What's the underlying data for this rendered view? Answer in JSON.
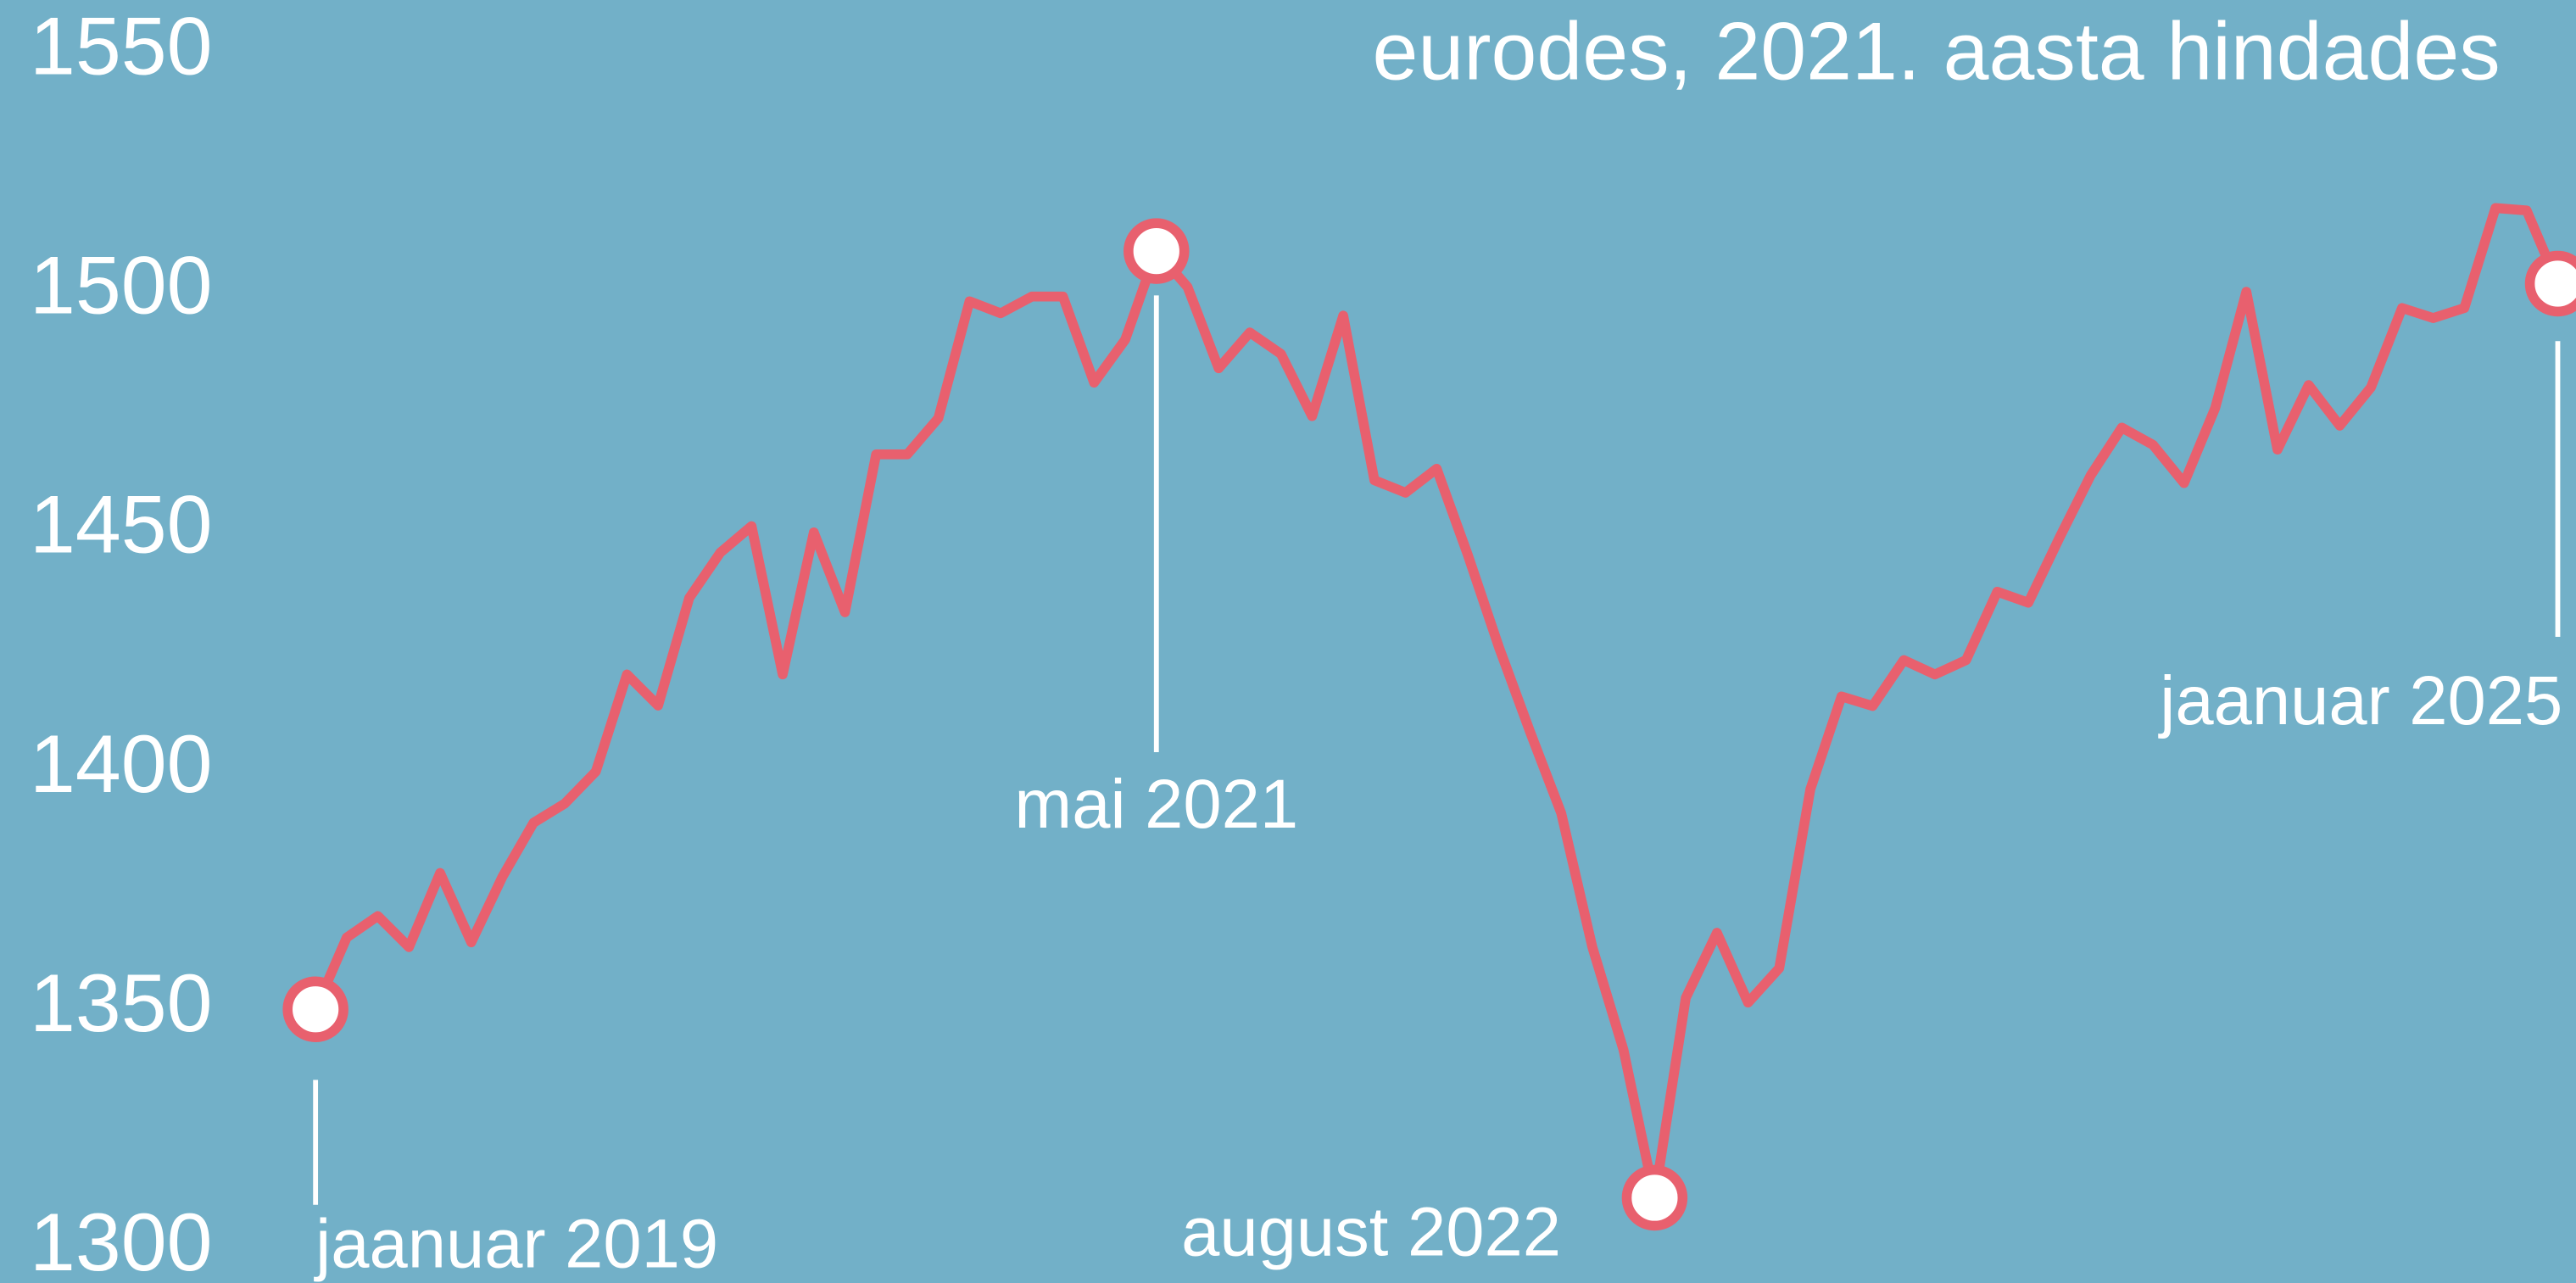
{
  "chart_data": {
    "type": "line",
    "title": "eurodes, 2021. aasta hindades",
    "categories": [
      "jaanuar 2019",
      null,
      null,
      null,
      null,
      null,
      null,
      null,
      null,
      null,
      null,
      null,
      null,
      null,
      null,
      null,
      null,
      null,
      null,
      null,
      null,
      null,
      null,
      null,
      null,
      null,
      null,
      "mai 2021",
      null,
      null,
      null,
      null,
      null,
      null,
      null,
      null,
      null,
      null,
      null,
      null,
      null,
      null,
      null,
      "august 2022",
      null,
      null,
      null,
      null,
      null,
      null,
      null,
      null,
      null,
      null,
      null,
      null,
      null,
      null,
      null,
      null,
      null,
      null,
      null,
      null,
      null,
      null,
      null,
      null,
      null,
      null,
      null,
      null,
      "jaanuar 2025"
    ],
    "series": [
      {
        "name": null,
        "color": "#e8606e",
        "values": [
          1350,
          1365,
          1369.5,
          1363,
          1378.5,
          1364,
          1377.7,
          1389,
          1393,
          1399.7,
          1420,
          1413.5,
          1436,
          1445.5,
          1451,
          1420,
          1449.7,
          1433,
          1466,
          1466,
          1473.6,
          1498,
          1495.5,
          1499,
          1499,
          1481,
          1490,
          1508.5,
          1501,
          1484,
          1491.5,
          1487,
          1474,
          1495,
          1460.6,
          1458,
          1463,
          1445,
          1425.7,
          1408,
          1391,
          1363,
          1341.5,
          1310.6,
          1352.4,
          1366,
          1351.4,
          1358.6,
          1396,
          1415.4,
          1413.4,
          1423,
          1420,
          1423,
          1437.3,
          1435,
          1448.6,
          1461.6,
          1471.6,
          1468,
          1460,
          1475.7,
          1500,
          1467,
          1480.5,
          1472,
          1480,
          1496.6,
          1494.5,
          1496.6,
          1517.5,
          1517,
          1501.7
        ]
      }
    ],
    "ylim": [
      1300,
      1550
    ],
    "yticks": [
      1300,
      1350,
      1400,
      1450,
      1500,
      1550
    ],
    "grid": false
  }
}
